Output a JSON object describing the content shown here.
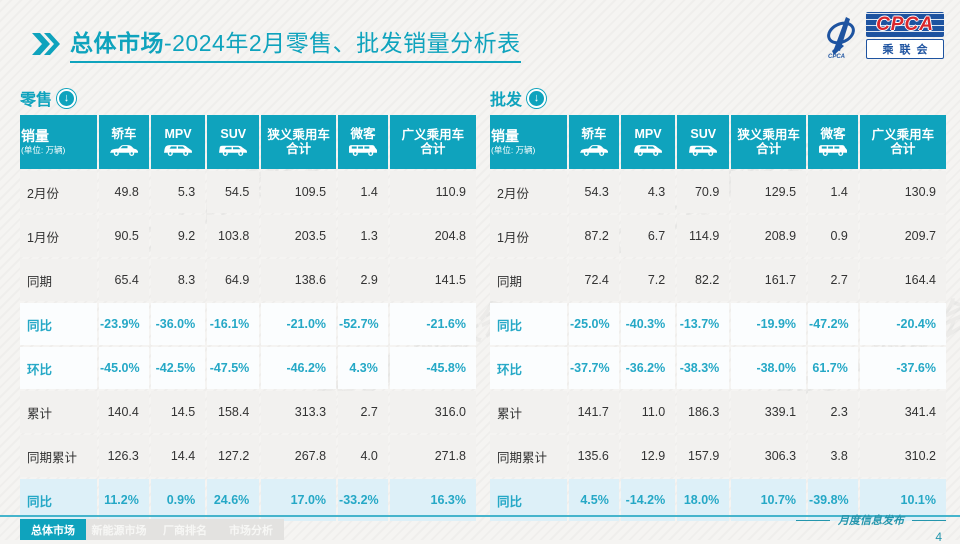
{
  "page": {
    "title_bold": "总体市场",
    "title_rest": "-2024年2月零售、批发销量分析表",
    "footer_note": "月度信息发布",
    "page_number": "4",
    "watermark": "CPCA 乘联会"
  },
  "logo": {
    "text": "CPCA",
    "subtext": "乘联会",
    "brand_blue": "#1e53a0",
    "brand_red": "#d9262c"
  },
  "colors": {
    "accent_teal": "#0fa3bd",
    "percent_text": "#25a8c6",
    "highlight_row_bg": "#ddf0f8",
    "data_row_bg": "#f2f1ef"
  },
  "footer_tabs": [
    {
      "label": "总体市场",
      "active": true
    },
    {
      "label": "新能源市场",
      "active": false
    },
    {
      "label": "厂商排名",
      "active": false
    },
    {
      "label": "市场分析",
      "active": false
    }
  ],
  "chart_data": [
    {
      "type": "table",
      "title": "零售",
      "corner_label": "销量",
      "corner_unit": "(单位: 万辆)",
      "columns": [
        {
          "label": "轿车",
          "icon": "sedan-icon"
        },
        {
          "label": "MPV",
          "icon": "mpv-icon"
        },
        {
          "label": "SUV",
          "icon": "suv-icon"
        },
        {
          "label": "狭义乘用车 合计"
        },
        {
          "label": "微客",
          "icon": "minibus-icon"
        },
        {
          "label": "广义乘用车 合计"
        }
      ],
      "rows": [
        {
          "label": "2月份",
          "kind": "data",
          "values": [
            "49.8",
            "5.3",
            "54.5",
            "109.5",
            "1.4",
            "110.9"
          ]
        },
        {
          "label": "1月份",
          "kind": "data",
          "values": [
            "90.5",
            "9.2",
            "103.8",
            "203.5",
            "1.3",
            "204.8"
          ]
        },
        {
          "label": "同期",
          "kind": "data",
          "values": [
            "65.4",
            "8.3",
            "64.9",
            "138.6",
            "2.9",
            "141.5"
          ]
        },
        {
          "label": "同比",
          "kind": "percent",
          "values": [
            "-23.9%",
            "-36.0%",
            "-16.1%",
            "-21.0%",
            "-52.7%",
            "-21.6%"
          ]
        },
        {
          "label": "环比",
          "kind": "percent",
          "values": [
            "-45.0%",
            "-42.5%",
            "-47.5%",
            "-46.2%",
            "4.3%",
            "-45.8%"
          ]
        },
        {
          "label": "累计",
          "kind": "data",
          "values": [
            "140.4",
            "14.5",
            "158.4",
            "313.3",
            "2.7",
            "316.0"
          ]
        },
        {
          "label": "同期累计",
          "kind": "data",
          "values": [
            "126.3",
            "14.4",
            "127.2",
            "267.8",
            "4.0",
            "271.8"
          ]
        },
        {
          "label": "同比",
          "kind": "percent_highlight",
          "values": [
            "11.2%",
            "0.9%",
            "24.6%",
            "17.0%",
            "-33.2%",
            "16.3%"
          ]
        }
      ]
    },
    {
      "type": "table",
      "title": "批发",
      "corner_label": "销量",
      "corner_unit": "(单位: 万辆)",
      "columns": [
        {
          "label": "轿车",
          "icon": "sedan-icon"
        },
        {
          "label": "MPV",
          "icon": "mpv-icon"
        },
        {
          "label": "SUV",
          "icon": "suv-icon"
        },
        {
          "label": "狭义乘用车 合计"
        },
        {
          "label": "微客",
          "icon": "minibus-icon"
        },
        {
          "label": "广义乘用车 合计"
        }
      ],
      "rows": [
        {
          "label": "2月份",
          "kind": "data",
          "values": [
            "54.3",
            "4.3",
            "70.9",
            "129.5",
            "1.4",
            "130.9"
          ]
        },
        {
          "label": "1月份",
          "kind": "data",
          "values": [
            "87.2",
            "6.7",
            "114.9",
            "208.9",
            "0.9",
            "209.7"
          ]
        },
        {
          "label": "同期",
          "kind": "data",
          "values": [
            "72.4",
            "7.2",
            "82.2",
            "161.7",
            "2.7",
            "164.4"
          ]
        },
        {
          "label": "同比",
          "kind": "percent",
          "values": [
            "-25.0%",
            "-40.3%",
            "-13.7%",
            "-19.9%",
            "-47.2%",
            "-20.4%"
          ]
        },
        {
          "label": "环比",
          "kind": "percent",
          "values": [
            "-37.7%",
            "-36.2%",
            "-38.3%",
            "-38.0%",
            "61.7%",
            "-37.6%"
          ]
        },
        {
          "label": "累计",
          "kind": "data",
          "values": [
            "141.7",
            "11.0",
            "186.3",
            "339.1",
            "2.3",
            "341.4"
          ]
        },
        {
          "label": "同期累计",
          "kind": "data",
          "values": [
            "135.6",
            "12.9",
            "157.9",
            "306.3",
            "3.8",
            "310.2"
          ]
        },
        {
          "label": "同比",
          "kind": "percent_highlight",
          "values": [
            "4.5%",
            "-14.2%",
            "18.0%",
            "10.7%",
            "-39.8%",
            "10.1%"
          ]
        }
      ]
    }
  ]
}
